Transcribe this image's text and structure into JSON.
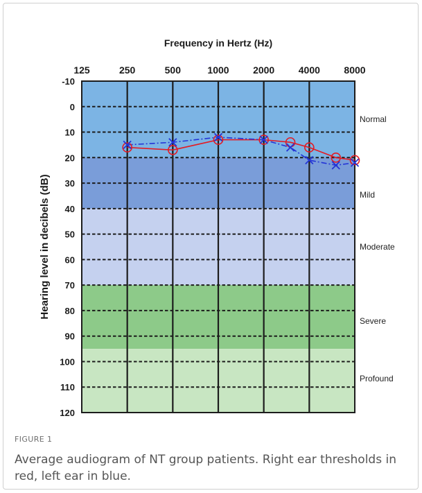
{
  "figure": {
    "label": "FIGURE 1",
    "caption": "Average audiogram of NT group patients. Right ear thresholds in red, left ear in blue."
  },
  "chart_data": {
    "type": "line",
    "xlabel": "Frequency in Hertz (Hz)",
    "ylabel": "Hearing level in decibels (dB)",
    "x_scale": "log2",
    "x_axis_position": "top",
    "xlim": [
      125,
      8000
    ],
    "x_ticks": [
      125,
      250,
      500,
      1000,
      2000,
      4000,
      8000
    ],
    "ylim": [
      -10,
      120
    ],
    "y_inverted": true,
    "y_ticks": [
      -10,
      0,
      10,
      20,
      30,
      40,
      50,
      60,
      70,
      80,
      90,
      100,
      110,
      120
    ],
    "grid": true,
    "bands": [
      {
        "label": "Normal",
        "from": -10,
        "to": 20,
        "color": "#7cb4e4"
      },
      {
        "label": "Mild",
        "from": 20,
        "to": 40,
        "color": "#7a9dd9"
      },
      {
        "label": "Moderate",
        "from": 40,
        "to": 70,
        "color": "#c5d1ef"
      },
      {
        "label": "Severe",
        "from": 70,
        "to": 95,
        "color": "#8dca89"
      },
      {
        "label": "Profound",
        "from": 95,
        "to": 120,
        "color": "#c8e6c2"
      }
    ],
    "series": [
      {
        "marker": "circle",
        "color": "#e31b23",
        "dashed": false,
        "x": [
          250,
          500,
          1000,
          2000,
          3000,
          4000,
          6000,
          8000
        ],
        "y": [
          16,
          17,
          13,
          13,
          14,
          16,
          20,
          21
        ]
      },
      {
        "marker": "cross",
        "color": "#2434d6",
        "dashed": true,
        "x": [
          250,
          500,
          1000,
          2000,
          3000,
          4000,
          6000,
          8000
        ],
        "y": [
          15,
          14,
          12,
          13,
          16,
          21,
          23,
          22
        ]
      }
    ]
  }
}
